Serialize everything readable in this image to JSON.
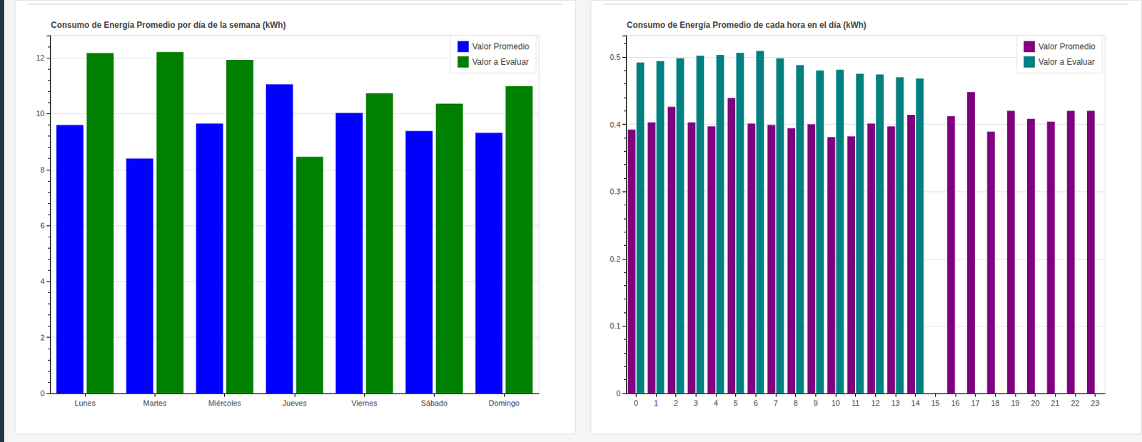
{
  "chart_data": [
    {
      "type": "bar",
      "title": "Consumo de Energía Promedio por día de la semana (kWh)",
      "categories": [
        "Lunes",
        "Martes",
        "Miércoles",
        "Jueves",
        "Viernes",
        "Sábado",
        "Domingo"
      ],
      "series": [
        {
          "name": "Valor Promedio",
          "color": "#0000ff",
          "values": [
            9.6,
            8.4,
            9.65,
            11.05,
            10.03,
            9.38,
            9.32
          ]
        },
        {
          "name": "Valor a Evaluar",
          "color": "#008000",
          "values": [
            12.17,
            12.21,
            11.93,
            8.46,
            10.73,
            10.36,
            10.99
          ]
        }
      ],
      "ylim": [
        0,
        12.8
      ],
      "yticks": [
        0,
        2,
        4,
        6,
        8,
        10,
        12
      ],
      "grid": true,
      "legend": "upper right"
    },
    {
      "type": "bar",
      "title": "Consumo de Energía Promedio de cada hora en el día (kWh)",
      "categories": [
        "0",
        "1",
        "2",
        "3",
        "4",
        "5",
        "6",
        "7",
        "8",
        "9",
        "10",
        "11",
        "12",
        "13",
        "14",
        "15",
        "16",
        "17",
        "18",
        "19",
        "20",
        "21",
        "22",
        "23"
      ],
      "series": [
        {
          "name": "Valor Promedio",
          "color": "#800080",
          "values": [
            0.392,
            0.403,
            0.426,
            0.403,
            0.397,
            0.439,
            0.401,
            0.399,
            0.394,
            0.4,
            0.381,
            0.382,
            0.401,
            0.397,
            0.414,
            null,
            0.412,
            0.448,
            0.389,
            0.42,
            0.408,
            0.404,
            0.42,
            0.42
          ]
        },
        {
          "name": "Valor a Evaluar",
          "color": "#008080",
          "values": [
            0.492,
            0.494,
            0.498,
            0.502,
            0.503,
            0.506,
            0.509,
            0.498,
            0.488,
            0.48,
            0.481,
            0.475,
            0.474,
            0.47,
            0.468,
            null,
            null,
            null,
            null,
            null,
            null,
            null,
            null,
            null
          ]
        }
      ],
      "ylim": [
        0,
        0.532
      ],
      "yticks": [
        0,
        0.1,
        0.2,
        0.3,
        0.4,
        0.5
      ],
      "grid": true,
      "legend": "upper right"
    }
  ]
}
